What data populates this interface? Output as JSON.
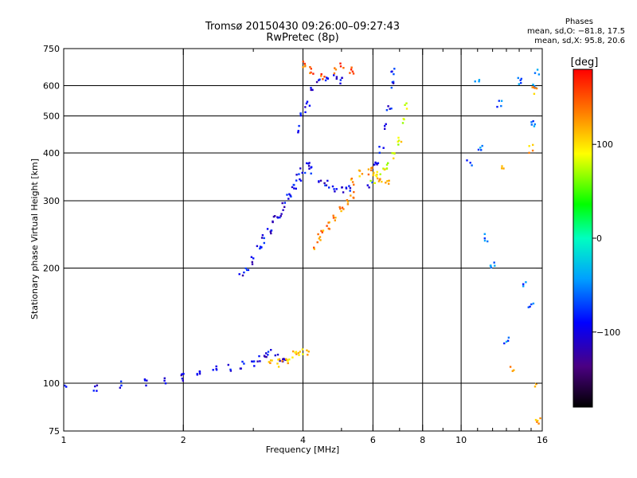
{
  "header": {
    "title": "Tromsø 20150430 09:26:00–09:27:43",
    "subtitle": "RwPretec (8p)"
  },
  "stats": {
    "heading": "Phases",
    "line_o": "mean, sd,O: −81.8, 17.5",
    "line_x": "mean, sd,X:  95.8, 20.6"
  },
  "colorbar": {
    "label": "[deg]",
    "ticks": [
      "100",
      "0",
      "−100"
    ],
    "range": [
      -180,
      180
    ],
    "tick_values": [
      100,
      0,
      -100
    ]
  },
  "chart_data": {
    "type": "scatter",
    "title": "Tromsø 20150430 09:26:00–09:27:43",
    "subtitle": "RwPretec (8p)",
    "xlabel": "Frequency [MHz]",
    "ylabel": "Stationary phase Virtual Height [km]",
    "xscale": "log",
    "yscale": "log",
    "xlim": [
      1,
      16
    ],
    "ylim": [
      75,
      750
    ],
    "xticks": [
      1,
      2,
      4,
      6,
      8,
      10,
      16
    ],
    "xtick_labels": [
      "1",
      "2",
      "4",
      "6",
      "8",
      "10",
      "16"
    ],
    "yticks": [
      75,
      100,
      200,
      300,
      400,
      500,
      600,
      750
    ],
    "ytick_labels": [
      "75",
      "100",
      "200",
      "300",
      "400",
      "500",
      "600",
      "750"
    ],
    "grid": true,
    "xminor": [
      3,
      5,
      7,
      9,
      11,
      12,
      13,
      14,
      15
    ],
    "series": [
      {
        "points": [
          [
            1.0,
            97
          ],
          [
            1.2,
            97
          ],
          [
            1.4,
            99
          ],
          [
            1.6,
            100
          ],
          [
            1.8,
            102
          ],
          [
            2.0,
            104
          ],
          [
            2.2,
            105
          ],
          [
            2.4,
            108
          ],
          [
            2.6,
            110
          ],
          [
            2.8,
            112
          ],
          [
            3.0,
            113
          ],
          [
            3.1,
            115
          ],
          [
            3.2,
            118
          ],
          [
            3.3,
            121
          ],
          [
            3.45,
            116
          ],
          [
            3.6,
            114
          ]
        ],
        "phase": -95
      },
      {
        "points": [
          [
            3.3,
            114
          ],
          [
            3.5,
            113
          ],
          [
            3.65,
            114
          ],
          [
            3.8,
            119
          ],
          [
            3.95,
            121
          ],
          [
            4.1,
            121
          ]
        ],
        "phase": 110
      },
      {
        "points": [
          [
            2.8,
            192
          ],
          [
            2.9,
            198
          ],
          [
            3.0,
            210
          ],
          [
            3.1,
            225
          ],
          [
            3.2,
            238
          ],
          [
            3.3,
            252
          ],
          [
            3.4,
            268
          ],
          [
            3.5,
            275
          ],
          [
            3.6,
            290
          ],
          [
            3.7,
            310
          ],
          [
            3.8,
            325
          ],
          [
            3.9,
            345
          ],
          [
            4.0,
            360
          ],
          [
            4.1,
            372
          ],
          [
            4.2,
            362
          ],
          [
            4.4,
            338
          ],
          [
            4.6,
            332
          ],
          [
            4.8,
            325
          ],
          [
            5.0,
            320
          ],
          [
            5.2,
            322
          ]
        ],
        "phase": -95
      },
      {
        "points": [
          [
            4.3,
            228
          ],
          [
            4.4,
            240
          ],
          [
            4.5,
            248
          ],
          [
            4.6,
            258
          ],
          [
            4.8,
            268
          ],
          [
            5.0,
            282
          ],
          [
            5.2,
            300
          ],
          [
            5.3,
            312
          ]
        ],
        "phase": 130
      },
      {
        "points": [
          [
            5.3,
            335
          ],
          [
            5.6,
            355
          ],
          [
            5.9,
            360
          ],
          [
            6.1,
            350
          ],
          [
            6.3,
            342
          ],
          [
            6.5,
            338
          ]
        ],
        "phase": 120
      },
      {
        "points": [
          [
            6.0,
            342
          ],
          [
            6.2,
            348
          ],
          [
            6.4,
            358
          ],
          [
            6.6,
            372
          ],
          [
            6.8,
            395
          ],
          [
            7.0,
            430
          ],
          [
            7.15,
            480
          ],
          [
            7.25,
            530
          ]
        ],
        "phase": 90
      },
      {
        "points": [
          [
            5.9,
            330
          ],
          [
            6.1,
            370
          ],
          [
            6.3,
            410
          ],
          [
            6.5,
            470
          ],
          [
            6.6,
            530
          ],
          [
            6.7,
            600
          ],
          [
            6.75,
            650
          ]
        ],
        "phase": -90
      },
      {
        "points": [
          [
            3.9,
            460
          ],
          [
            4.0,
            500
          ],
          [
            4.1,
            540
          ],
          [
            4.2,
            580
          ],
          [
            4.4,
            610
          ],
          [
            4.6,
            625
          ],
          [
            4.8,
            630
          ],
          [
            5.0,
            620
          ]
        ],
        "phase": -95
      },
      {
        "points": [
          [
            4.0,
            680
          ],
          [
            4.2,
            660
          ],
          [
            4.5,
            640
          ],
          [
            4.8,
            655
          ],
          [
            5.0,
            670
          ],
          [
            5.3,
            660
          ]
        ],
        "phase": 150
      },
      {
        "points": [
          [
            11.2,
            410
          ],
          [
            11.5,
            240
          ],
          [
            12.0,
            205
          ],
          [
            13.0,
            130
          ],
          [
            14.5,
            180
          ],
          [
            15.0,
            160
          ],
          [
            15.2,
            480
          ],
          [
            15.4,
            600
          ],
          [
            15.5,
            650
          ],
          [
            14.0,
            620
          ],
          [
            12.5,
            540
          ],
          [
            11.0,
            630
          ],
          [
            10.5,
            380
          ]
        ],
        "phase": -60
      },
      {
        "points": [
          [
            13.5,
            108
          ],
          [
            12.8,
            370
          ],
          [
            15.0,
            410
          ],
          [
            15.3,
            580
          ],
          [
            15.6,
            80
          ],
          [
            15.4,
            100
          ]
        ],
        "phase": 120
      }
    ]
  }
}
